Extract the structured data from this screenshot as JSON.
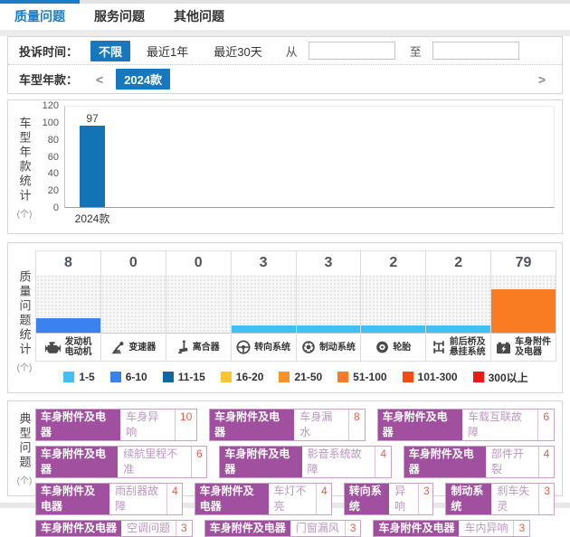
{
  "tabs": [
    {
      "label": "质量问题",
      "active": true
    },
    {
      "label": "服务问题",
      "active": false
    },
    {
      "label": "其他问题",
      "active": false
    }
  ],
  "filters": {
    "time_label": "投诉时间：",
    "time_unlimited": "不限",
    "time_last_year": "最近1年",
    "time_last_30days": "最近30天",
    "from_label": "从",
    "to_label": "至",
    "from_value": "",
    "to_value": "",
    "year_label": "车型年款：",
    "prev_arrow": "<",
    "year_selected": "2024款",
    "next_arrow": ">"
  },
  "colors": {
    "accent_blue": "#1878bd",
    "year_bar_blue": "#1373b4",
    "tag_purple": "#a0509f"
  },
  "chart_data": [
    {
      "type": "bar",
      "title": "车型年款统计",
      "unit": "(个)",
      "categories": [
        "2024款"
      ],
      "values": [
        97
      ],
      "ylim": [
        0,
        120
      ],
      "yticks": [
        120,
        100,
        80,
        60,
        40,
        20,
        0
      ],
      "bar_color": "#1373b4",
      "grid": false
    },
    {
      "type": "bar",
      "title": "质量问题统计",
      "unit": "(个)",
      "note": "bar height encodes legend bucket level (0-8), color encodes count range",
      "categories": [
        {
          "label": "发动机电动机",
          "lines": [
            "发动机",
            "电动机"
          ],
          "icon": "engine-icon",
          "value": 8,
          "color": "#3b82f0",
          "level": 2
        },
        {
          "label": "变速器",
          "lines": [
            "变速器"
          ],
          "icon": "gearshift-icon",
          "value": 0,
          "color": null,
          "level": 0
        },
        {
          "label": "离合器",
          "lines": [
            "离合器"
          ],
          "icon": "clutch-pedal-icon",
          "value": 0,
          "color": null,
          "level": 0
        },
        {
          "label": "转向系统",
          "lines": [
            "转向系统"
          ],
          "icon": "steering-wheel-icon",
          "value": 3,
          "color": "#3fc1f5",
          "level": 1
        },
        {
          "label": "制动系统",
          "lines": [
            "制动系统"
          ],
          "icon": "brake-disc-icon",
          "value": 3,
          "color": "#3fc1f5",
          "level": 1
        },
        {
          "label": "轮胎",
          "lines": [
            "轮胎"
          ],
          "icon": "tire-icon",
          "value": 2,
          "color": "#3fc1f5",
          "level": 1
        },
        {
          "label": "前后桥及悬挂系统",
          "lines": [
            "前后桥及",
            "悬挂系统"
          ],
          "icon": "axle-suspension-icon",
          "value": 2,
          "color": "#3fc1f5",
          "level": 1
        },
        {
          "label": "车身附件及电器",
          "lines": [
            "车身附件",
            "及电器"
          ],
          "icon": "car-battery-icon",
          "value": 79,
          "color": "#f97b22",
          "level": 6
        }
      ],
      "legend": [
        {
          "label": "1-5",
          "color": "#3fc1f5"
        },
        {
          "label": "6-10",
          "color": "#3b82f0"
        },
        {
          "label": "11-15",
          "color": "#0e68a8"
        },
        {
          "label": "16-20",
          "color": "#fcc72e"
        },
        {
          "label": "21-50",
          "color": "#fa9226"
        },
        {
          "label": "51-100",
          "color": "#f97b22"
        },
        {
          "label": "101-300",
          "color": "#fb4a0d"
        },
        {
          "label": "300以上",
          "color": "#f51616"
        }
      ],
      "legend_position": "bottom"
    }
  ],
  "typical": {
    "title": "典型问题",
    "unit": "(个)",
    "rows": [
      [
        {
          "category": "车身附件及电器",
          "problem": "车身异响",
          "count": "10"
        },
        {
          "category": "车身附件及电器",
          "problem": "车身漏水",
          "count": "8"
        },
        {
          "category": "车身附件及电器",
          "problem": "车载互联故障",
          "count": "6"
        }
      ],
      [
        {
          "category": "车身附件及电器",
          "problem": "续航里程不准",
          "count": "6"
        },
        {
          "category": "车身附件及电器",
          "problem": "影音系统故障",
          "count": "4"
        },
        {
          "category": "车身附件及电器",
          "problem": "部件开裂",
          "count": "4"
        }
      ],
      [
        {
          "category": "车身附件及电器",
          "problem": "雨刮器故障",
          "count": "4"
        },
        {
          "category": "车身附件及电器",
          "problem": "车灯不亮",
          "count": "4"
        },
        {
          "category": "转向系统",
          "problem": "异响",
          "count": "3"
        },
        {
          "category": "制动系统",
          "problem": "刹车失灵",
          "count": "3"
        }
      ],
      [
        {
          "category": "车身附件及电器",
          "problem": "空调问题",
          "count": "3"
        },
        {
          "category": "车身附件及电器",
          "problem": "门窗漏风",
          "count": "3"
        },
        {
          "category": "车身附件及电器",
          "problem": "车内异响",
          "count": "3"
        }
      ]
    ]
  }
}
